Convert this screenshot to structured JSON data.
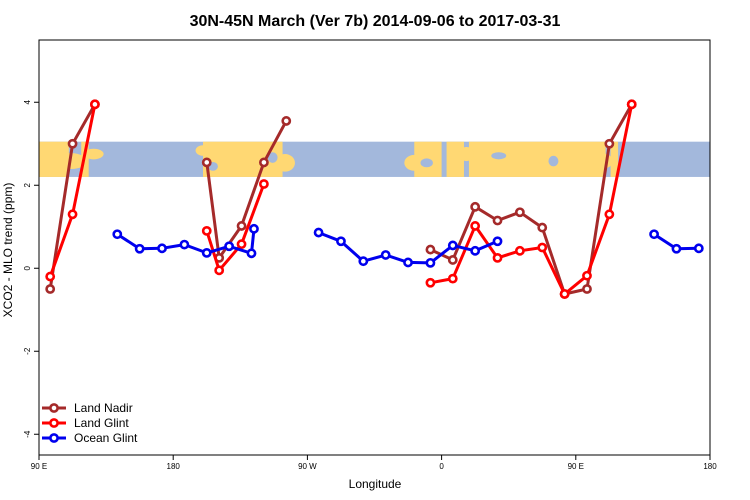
{
  "chart_data": {
    "type": "line",
    "title": "30N-45N March (Ver 7b)   2014-09-06 to 2017-03-31",
    "xlabel": "Longitude",
    "ylabel": "XCO2 - MLO trend (ppm)",
    "xlim": [
      -90,
      180
    ],
    "ylim": [
      -4.5,
      5.5
    ],
    "x_ticks": [
      {
        "value": -90,
        "label": "90 E"
      },
      {
        "value": -36,
        "label": "180"
      },
      {
        "value": 18,
        "label": "90 W"
      },
      {
        "value": 72,
        "label": "0"
      },
      {
        "value": 126,
        "label": "90 E"
      },
      {
        "value": 180,
        "label": "180"
      }
    ],
    "y_ticks": [
      {
        "value": -4,
        "label": "-4"
      },
      {
        "value": -2,
        "label": "-2"
      },
      {
        "value": 0,
        "label": "0"
      },
      {
        "value": 2,
        "label": "2"
      },
      {
        "value": 4,
        "label": "4"
      }
    ],
    "map_band": {
      "y_min": 2.2,
      "y_max": 3.05,
      "ocean_color": "#a3b8dc",
      "land_color": "#ffd873"
    },
    "legend_position": "bottom-left",
    "grid": false,
    "series": [
      {
        "name": "Land Nadir",
        "color": "#a52a2a",
        "segments": [
          [
            [
              -85.5,
              -0.5
            ],
            [
              -76.5,
              3.0
            ],
            [
              -67.5,
              3.95
            ]
          ],
          [
            [
              -22.5,
              2.55
            ],
            [
              -17.5,
              0.25
            ],
            [
              -8.5,
              1.02
            ],
            [
              0.5,
              2.55
            ],
            [
              9.5,
              3.55
            ]
          ],
          [
            [
              67.5,
              0.45
            ],
            [
              76.5,
              0.2
            ],
            [
              85.5,
              1.48
            ],
            [
              94.5,
              1.15
            ],
            [
              103.5,
              1.35
            ],
            [
              112.5,
              0.98
            ],
            [
              121.5,
              -0.62
            ],
            [
              130.5,
              -0.5
            ],
            [
              139.5,
              3.0
            ],
            [
              148.5,
              3.95
            ]
          ]
        ]
      },
      {
        "name": "Land Glint",
        "color": "#ff0000",
        "segments": [
          [
            [
              -85.5,
              -0.2
            ],
            [
              -76.5,
              1.3
            ],
            [
              -67.5,
              3.95
            ]
          ],
          [
            [
              -22.5,
              0.9
            ],
            [
              -17.5,
              -0.05
            ],
            [
              -8.5,
              0.58
            ],
            [
              0.5,
              2.03
            ]
          ],
          [
            [
              67.5,
              -0.35
            ],
            [
              76.5,
              -0.25
            ],
            [
              85.5,
              1.02
            ],
            [
              94.5,
              0.25
            ],
            [
              103.5,
              0.42
            ],
            [
              112.5,
              0.5
            ],
            [
              121.5,
              -0.62
            ],
            [
              130.5,
              -0.18
            ],
            [
              139.5,
              1.3
            ],
            [
              148.5,
              3.95
            ]
          ]
        ]
      },
      {
        "name": "Ocean Glint",
        "color": "#0000ee",
        "segments": [
          [
            [
              -58.5,
              0.82
            ],
            [
              -49.5,
              0.47
            ],
            [
              -40.5,
              0.48
            ],
            [
              -31.5,
              0.57
            ],
            [
              -22.5,
              0.37
            ],
            [
              -13.5,
              0.53
            ],
            [
              -4.5,
              0.36
            ],
            [
              -3.5,
              0.95
            ]
          ],
          [
            [
              22.5,
              0.86
            ],
            [
              31.5,
              0.65
            ],
            [
              40.5,
              0.17
            ],
            [
              49.5,
              0.32
            ],
            [
              58.5,
              0.14
            ],
            [
              67.5,
              0.13
            ],
            [
              76.5,
              0.55
            ],
            [
              85.5,
              0.42
            ],
            [
              94.5,
              0.65
            ]
          ],
          [
            [
              157.5,
              0.82
            ],
            [
              166.5,
              0.47
            ],
            [
              175.5,
              0.48
            ]
          ]
        ]
      }
    ]
  }
}
